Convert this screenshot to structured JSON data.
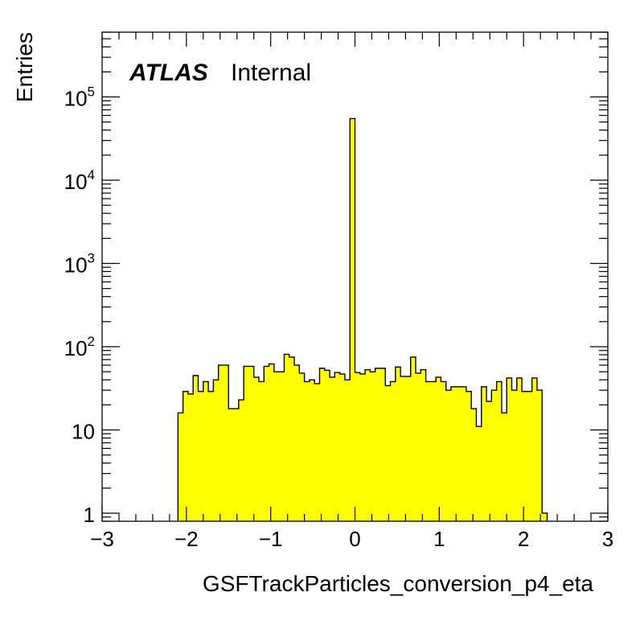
{
  "chart_data": {
    "type": "bar",
    "histogram": true,
    "xlabel": "GSFTrackParticles_conversion_p4_eta",
    "ylabel": "Entries",
    "xlim": [
      -3,
      3
    ],
    "ylim": [
      0.8,
      600000
    ],
    "log_y": true,
    "x_ticks": [
      -3,
      -2,
      -1,
      0,
      1,
      2,
      3
    ],
    "x_tick_labels": [
      "−3",
      "−2",
      "−1",
      "0",
      "1",
      "2",
      "3"
    ],
    "y_ticks": [
      {
        "value": 1,
        "base": "1",
        "exp": ""
      },
      {
        "value": 10,
        "base": "10",
        "exp": ""
      },
      {
        "value": 100,
        "base": "10",
        "exp": "2"
      },
      {
        "value": 1000,
        "base": "10",
        "exp": "3"
      },
      {
        "value": 10000,
        "base": "10",
        "exp": "4"
      },
      {
        "value": 100000,
        "base": "10",
        "exp": "5"
      }
    ],
    "bin_width": 0.06,
    "bin_start": -2.1,
    "values": [
      16,
      29,
      27,
      45,
      29,
      38,
      29,
      40,
      60,
      60,
      18,
      18,
      23,
      58,
      58,
      43,
      38,
      58,
      62,
      50,
      50,
      81,
      75,
      60,
      48,
      38,
      40,
      36,
      55,
      52,
      43,
      49,
      47,
      40,
      55000,
      49,
      47,
      53,
      50,
      55,
      55,
      34,
      38,
      57,
      44,
      44,
      75,
      48,
      53,
      38,
      38,
      43,
      38,
      30,
      33,
      33,
      33,
      29,
      18,
      11,
      33,
      22,
      30,
      38,
      16,
      42,
      30,
      42,
      29,
      29,
      42,
      30,
      1
    ],
    "bar_color": "#ffff00",
    "line_color": "#000000",
    "grid": false,
    "legend": "none"
  },
  "labels": {
    "atlas": "ATLAS",
    "internal": "Internal"
  }
}
